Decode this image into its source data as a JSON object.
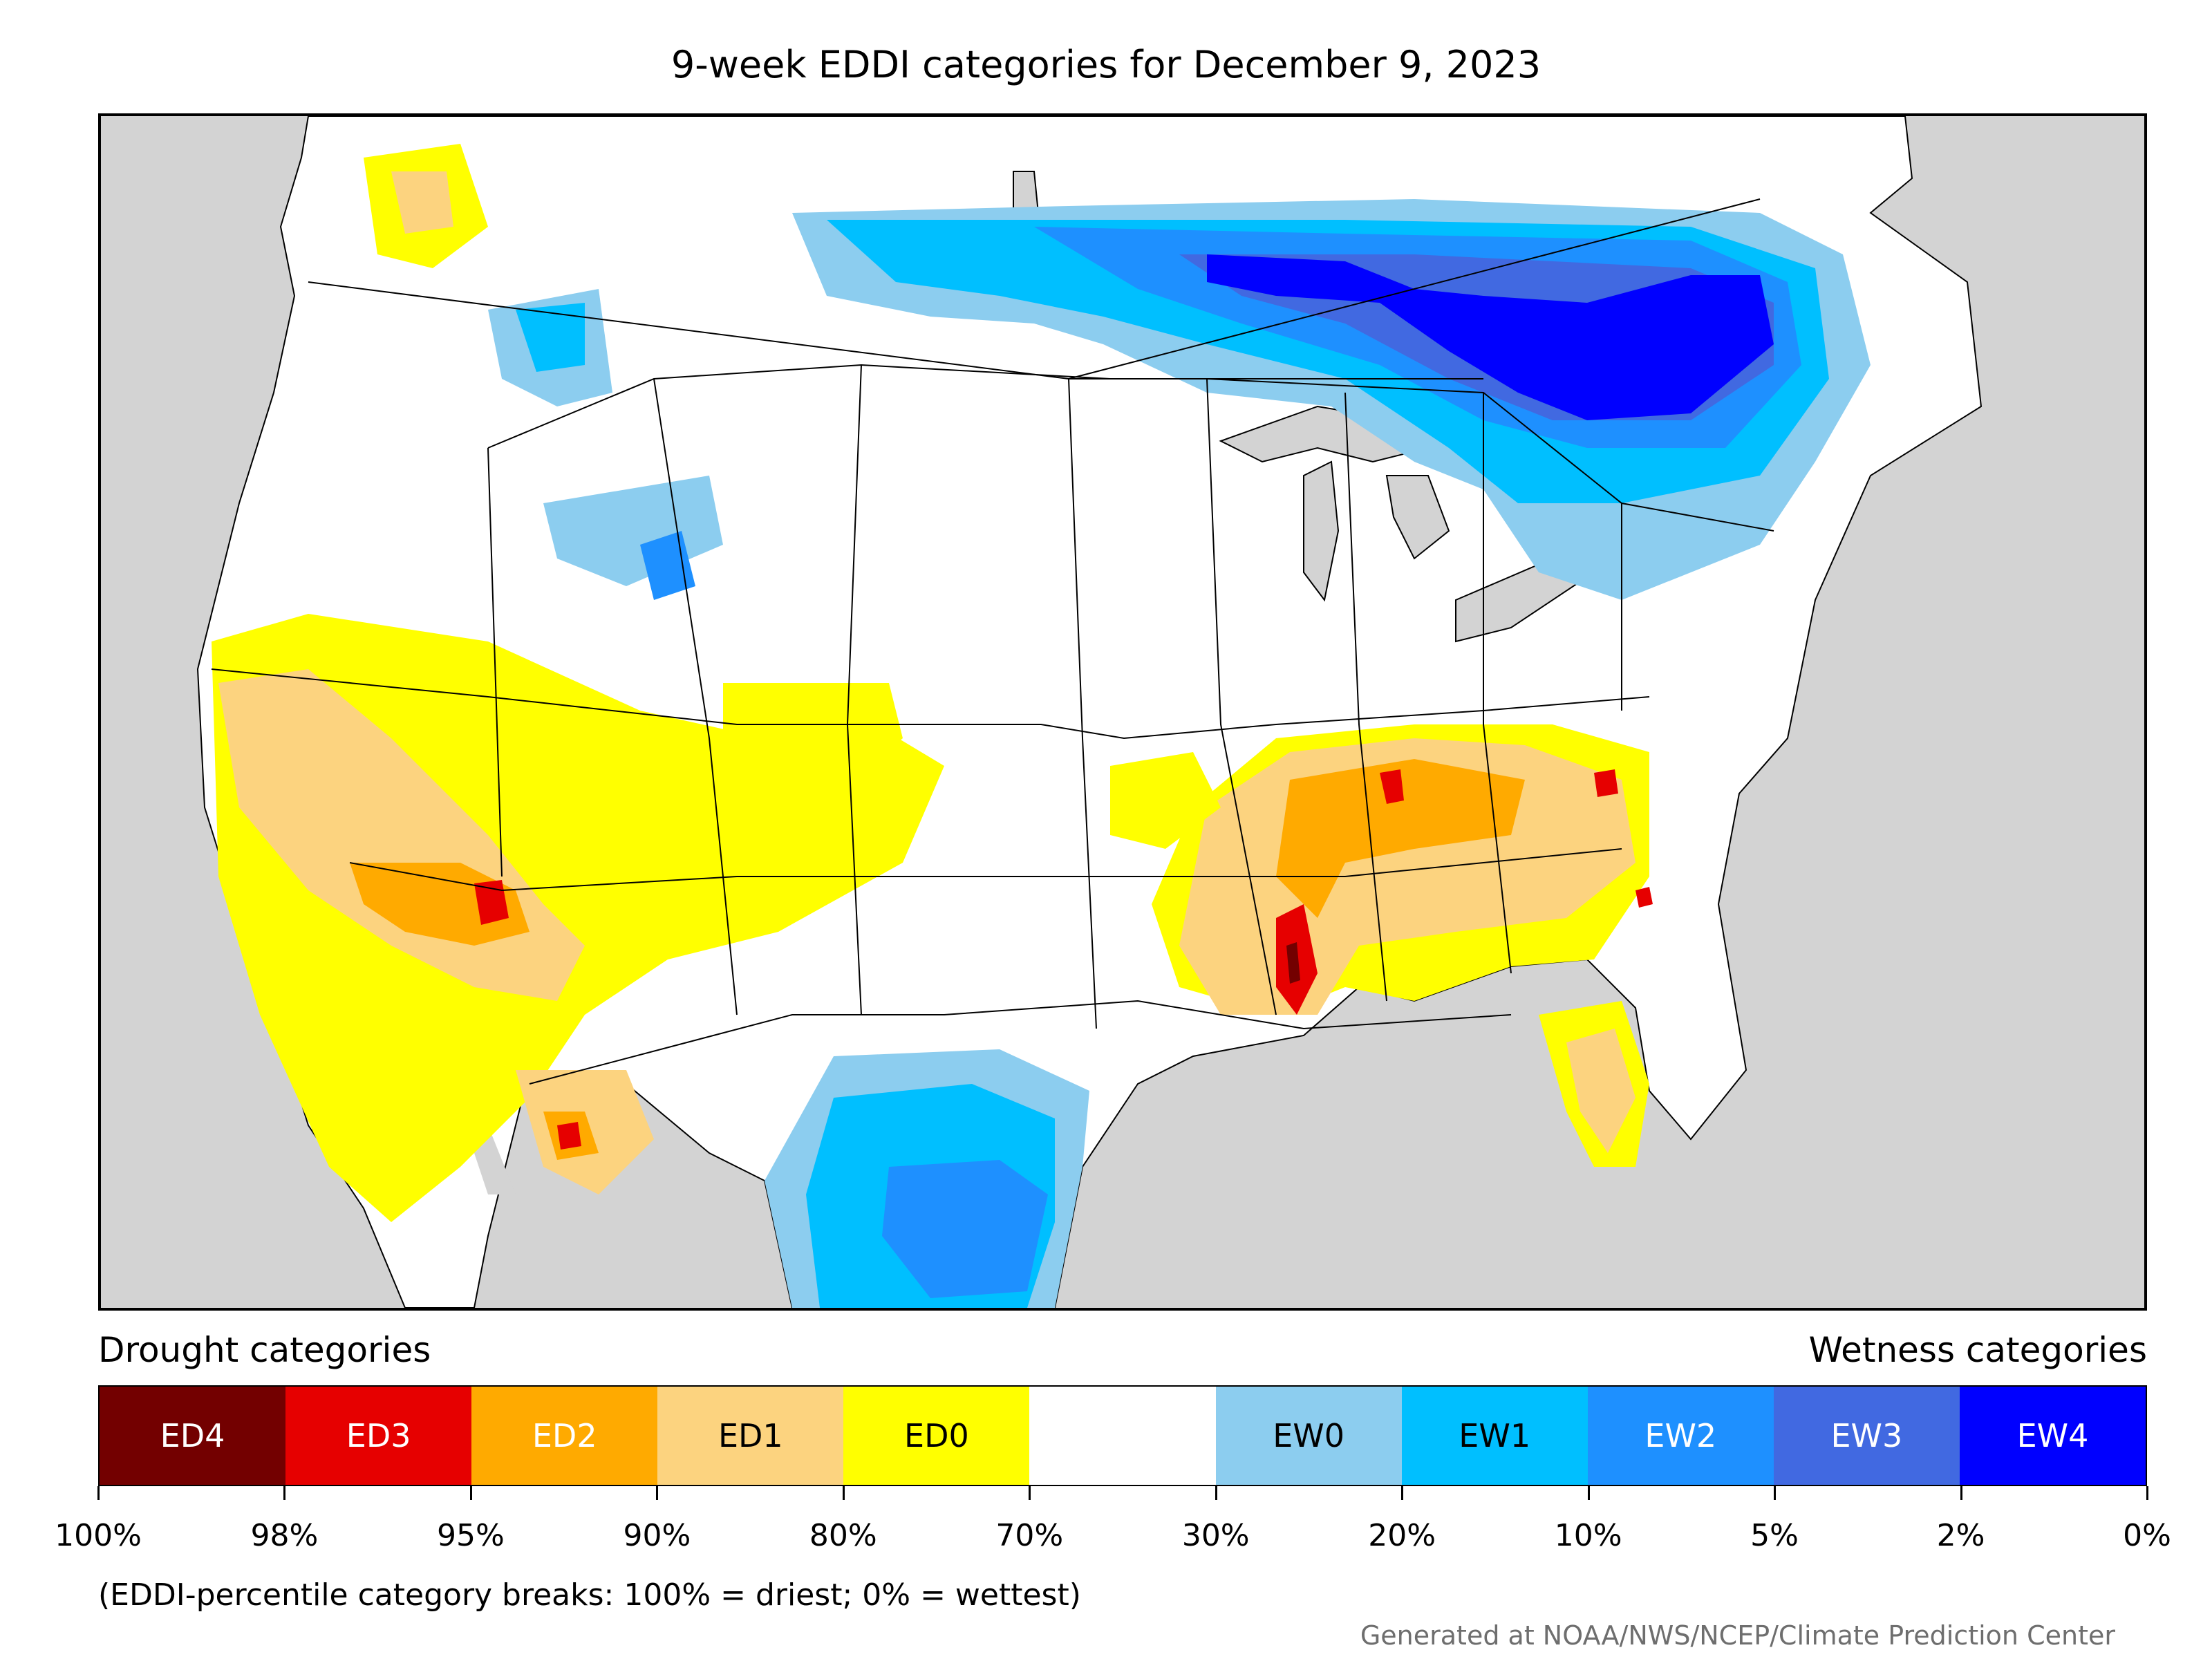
{
  "title": "9-week EDDI categories for December 9, 2023",
  "legend": {
    "drought_heading": "Drought categories",
    "wetness_heading": "Wetness categories",
    "categories": [
      {
        "label": "ED4",
        "color": "#730000",
        "text_color": "#ffffff"
      },
      {
        "label": "ED3",
        "color": "#e60000",
        "text_color": "#ffffff"
      },
      {
        "label": "ED2",
        "color": "#ffaa00",
        "text_color": "#ffffff"
      },
      {
        "label": "ED1",
        "color": "#fcd37f",
        "text_color": "#000000"
      },
      {
        "label": "ED0",
        "color": "#ffff00",
        "text_color": "#000000"
      },
      {
        "label": "",
        "color": "#ffffff",
        "text_color": "#000000"
      },
      {
        "label": "EW0",
        "color": "#8ccdef",
        "text_color": "#000000"
      },
      {
        "label": "EW1",
        "color": "#00bfff",
        "text_color": "#000000"
      },
      {
        "label": "EW2",
        "color": "#1e90ff",
        "text_color": "#ffffff"
      },
      {
        "label": "EW3",
        "color": "#4169e1",
        "text_color": "#ffffff"
      },
      {
        "label": "EW4",
        "color": "#0000ff",
        "text_color": "#ffffff"
      }
    ],
    "tick_labels": [
      "100%",
      "98%",
      "95%",
      "90%",
      "80%",
      "70%",
      "30%",
      "20%",
      "10%",
      "5%",
      "2%",
      "0%"
    ]
  },
  "note": "(EDDI-percentile category breaks: 100% = driest; 0% = wettest)",
  "credit": "Generated at NOAA/NWS/NCEP/Climate Prediction Center",
  "map_colors": {
    "ocean": "#d3d3d3",
    "land": "#ffffff",
    "borders": "#000000"
  }
}
